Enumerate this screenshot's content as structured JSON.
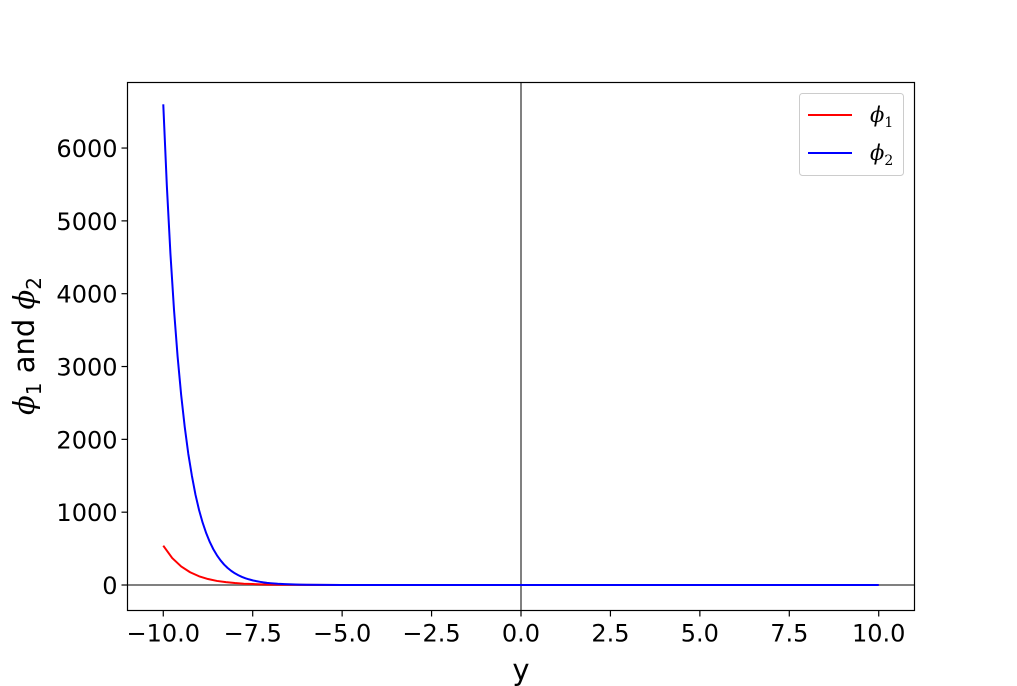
{
  "chart_data": {
    "type": "line",
    "title": "",
    "xlabel": "y",
    "ylabel": {
      "sym1": "ϕ",
      "sub1": "1",
      "connector": " and ",
      "sym2": "ϕ",
      "sub2": "2"
    },
    "xlim": [
      -11,
      11
    ],
    "ylim": [
      -350,
      6900
    ],
    "x_ticks": [
      -10,
      -7.5,
      -5,
      -2.5,
      0,
      2.5,
      5,
      7.5,
      10
    ],
    "x_tick_labels": [
      "−10.0",
      "−7.5",
      "−5.0",
      "−2.5",
      "0.0",
      "2.5",
      "5.0",
      "7.5",
      "10.0"
    ],
    "y_ticks": [
      0,
      1000,
      2000,
      3000,
      4000,
      5000,
      6000
    ],
    "y_tick_labels": [
      "0",
      "1000",
      "2000",
      "3000",
      "4000",
      "5000",
      "6000"
    ],
    "grid": false,
    "legend_position": "top-right",
    "reference_lines": {
      "x": 0,
      "y": 0,
      "color": "#808080"
    },
    "series": [
      {
        "name": "ϕ1",
        "label_sym": "ϕ",
        "label_sub": "1",
        "color": "#ff0000",
        "x": [
          -10,
          -9.75,
          -9.5,
          -9.25,
          -9,
          -8.75,
          -8.5,
          -8.25,
          -8,
          -7.75,
          -7.5,
          -7.25,
          -7,
          -6.5,
          -6,
          -5,
          -4,
          -2,
          0,
          2,
          4,
          6,
          8,
          10
        ],
        "y": [
          540,
          370,
          255,
          175,
          120,
          82,
          56,
          39,
          27,
          18,
          13,
          9,
          6,
          3,
          1.4,
          0.3,
          0.05,
          0,
          0,
          0,
          0,
          0,
          0,
          0
        ]
      },
      {
        "name": "ϕ2",
        "label_sym": "ϕ",
        "label_sub": "2",
        "color": "#0000ff",
        "x": [
          -10,
          -9.9,
          -9.8,
          -9.7,
          -9.6,
          -9.5,
          -9.4,
          -9.3,
          -9.2,
          -9.1,
          -9,
          -8.9,
          -8.8,
          -8.7,
          -8.6,
          -8.5,
          -8.4,
          -8.3,
          -8.2,
          -8.1,
          -8,
          -7.9,
          -7.8,
          -7.7,
          -7.6,
          -7.5,
          -7.4,
          -7.3,
          -7.2,
          -7.1,
          -7,
          -6.8,
          -6.6,
          -6.4,
          -6.2,
          -6,
          -5.5,
          -5,
          -4,
          -2,
          0,
          2,
          4,
          6,
          8,
          10
        ],
        "y": [
          6600,
          5480,
          4550,
          3780,
          3140,
          2610,
          2170,
          1800,
          1500,
          1240,
          1030,
          857,
          712,
          591,
          491,
          408,
          339,
          281,
          234,
          194,
          161,
          134,
          111,
          92,
          77,
          64,
          53,
          44,
          36,
          30,
          25,
          17,
          12,
          8.5,
          6,
          4,
          1.5,
          0.5,
          0.05,
          0,
          0,
          0,
          0,
          0,
          0,
          0
        ]
      }
    ]
  }
}
